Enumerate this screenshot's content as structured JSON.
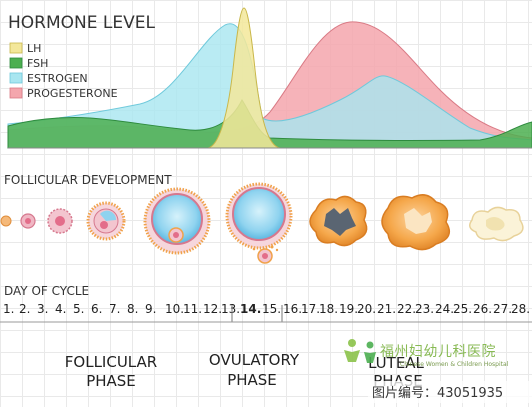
{
  "hormone_title": "HORMONE LEVEL",
  "legend": [
    {
      "label": "LH",
      "color": "#f3e79a"
    },
    {
      "label": "FSH",
      "color": "#4caf50"
    },
    {
      "label": "ESTROGEN",
      "color": "#a8e6f0"
    },
    {
      "label": "PROGESTERONE",
      "color": "#f4a6ad"
    }
  ],
  "follicular_title": "FOLLICULAR DEVELOPMENT",
  "day_title": "DAY OF CYCLE",
  "days": [
    "1.",
    "2.",
    "3.",
    "4.",
    "5.",
    "6.",
    "7.",
    "8.",
    "9.",
    "10.",
    "11.",
    "12.",
    "13.",
    "14.",
    "15.",
    "16.",
    "17.",
    "18.",
    "19.",
    "20.",
    "21.",
    "22.",
    "23.",
    "24.",
    "25.",
    "26.",
    "27.",
    "28."
  ],
  "highlight_day": "14.",
  "highlight_color": "#e53935",
  "phases": [
    {
      "line1": "FOLLICULAR",
      "line2": "PHASE"
    },
    {
      "line1": "OVULATORY",
      "line2": "PHASE"
    },
    {
      "line1": "LUTEAL",
      "line2": "PHASE"
    }
  ],
  "watermark_left": "Chinese Women & Children Hospital",
  "watermark_chars": "福州妇幼儿科医院",
  "watermark_id": "图片编号：43051935"
}
